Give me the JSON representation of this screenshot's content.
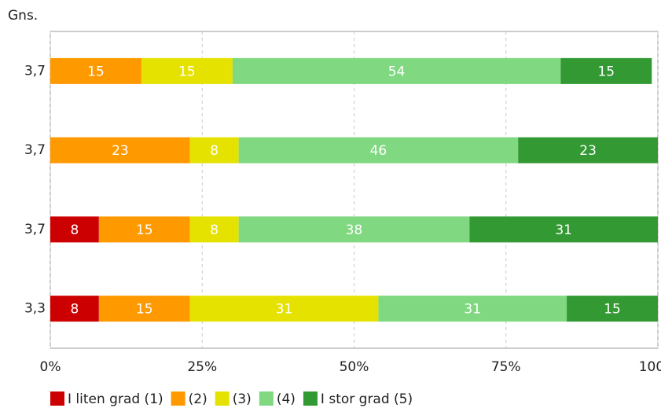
{
  "chart_data": {
    "type": "bar",
    "orientation": "horizontal",
    "stacked": true,
    "y_label": "Gns.",
    "categories": [
      "3,7",
      "3,7",
      "3,7",
      "3,3"
    ],
    "series": [
      {
        "name": "I liten grad (1)",
        "color": "#cc0000",
        "values": [
          null,
          null,
          8,
          8
        ]
      },
      {
        "name": "(2)",
        "color": "#ff9900",
        "values": [
          15,
          23,
          15,
          15
        ]
      },
      {
        "name": "(3)",
        "color": "#e6e200",
        "values": [
          15,
          8,
          8,
          31
        ]
      },
      {
        "name": "(4)",
        "color": "#80d880",
        "values": [
          54,
          46,
          38,
          31
        ]
      },
      {
        "name": "I stor grad (5)",
        "color": "#339933",
        "values": [
          15,
          23,
          31,
          15
        ]
      }
    ],
    "xlim": [
      0,
      100
    ],
    "xticks": [
      {
        "value": 0,
        "label": "0%"
      },
      {
        "value": 25,
        "label": "25%"
      },
      {
        "value": 50,
        "label": "50%"
      },
      {
        "value": 75,
        "label": "75%"
      },
      {
        "value": 100,
        "label": "100%"
      }
    ],
    "grid": true,
    "legend": "bottom"
  }
}
